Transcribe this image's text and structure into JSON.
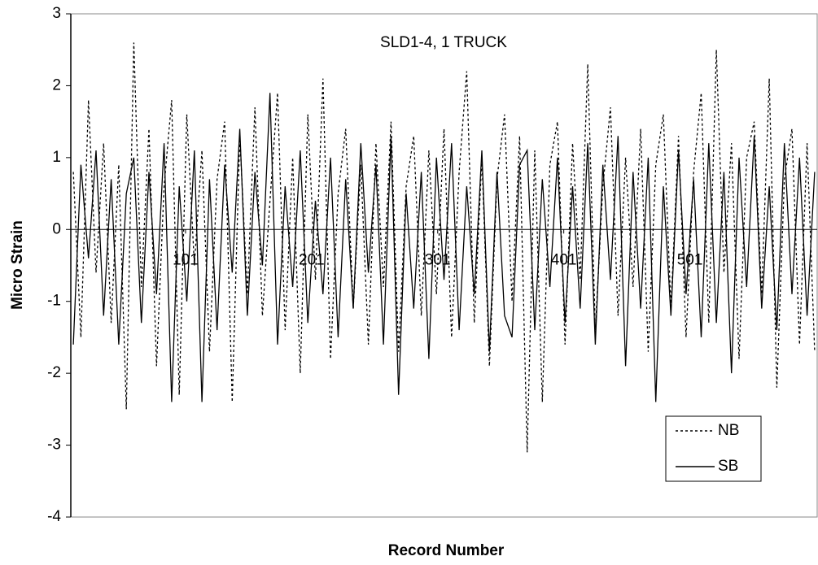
{
  "chart_data": {
    "type": "line",
    "title": "SLD1-4, 1 TRUCK",
    "xlabel": "Record Number",
    "ylabel": "Micro Strain",
    "x": [
      12,
      18,
      24,
      30,
      36,
      42,
      48,
      54,
      60,
      66,
      72,
      78,
      84,
      90,
      96,
      102,
      108,
      114,
      120,
      126,
      132,
      138,
      144,
      150,
      156,
      162,
      168,
      174,
      180,
      186,
      192,
      198,
      204,
      210,
      216,
      222,
      228,
      234,
      240,
      246,
      252,
      258,
      264,
      270,
      276,
      282,
      288,
      294,
      300,
      306,
      312,
      318,
      324,
      330,
      336,
      342,
      348,
      354,
      360,
      366,
      372,
      378,
      384,
      390,
      396,
      402,
      408,
      414,
      420,
      426,
      432,
      438,
      444,
      450,
      456,
      462,
      468,
      474,
      480,
      486,
      492,
      498,
      504,
      510,
      516,
      522,
      528,
      534,
      540,
      546,
      552,
      558,
      564,
      570,
      576,
      582,
      588,
      594,
      600
    ],
    "series": [
      {
        "name": "NB",
        "color": "#000000",
        "style": "dotted",
        "values": [
          0.8,
          -1.5,
          1.8,
          -0.6,
          1.2,
          -1.3,
          0.9,
          -2.5,
          2.6,
          -0.8,
          1.4,
          -1.9,
          0.6,
          1.8,
          -2.3,
          1.6,
          -0.5,
          1.1,
          -1.7,
          0.7,
          1.5,
          -2.4,
          1.3,
          -0.9,
          1.7,
          -1.2,
          0.4,
          1.9,
          -1.4,
          1.0,
          -2.0,
          1.6,
          -0.7,
          2.1,
          -1.8,
          0.5,
          1.4,
          -1.1,
          0.9,
          -1.6,
          1.2,
          -0.8,
          1.5,
          -1.7,
          0.6,
          1.3,
          -1.2,
          1.1,
          -0.9,
          1.4,
          -1.5,
          0.8,
          2.2,
          -1.3,
          1.0,
          -1.9,
          0.7,
          1.6,
          -1.0,
          1.3,
          -3.1,
          1.1,
          -2.4,
          0.9,
          1.5,
          -1.6,
          1.2,
          -0.7,
          2.3,
          -1.4,
          0.6,
          1.7,
          -1.2,
          1.0,
          -0.8,
          1.4,
          -1.7,
          0.9,
          1.6,
          -1.1,
          1.3,
          -1.5,
          0.8,
          1.9,
          -1.3,
          2.5,
          -0.6,
          1.2,
          -1.8,
          1.0,
          1.5,
          -0.9,
          2.1,
          -2.2,
          0.7,
          1.4,
          -1.6,
          1.2,
          -1.7
        ]
      },
      {
        "name": "SB",
        "color": "#000000",
        "style": "solid",
        "values": [
          -1.6,
          0.9,
          -0.4,
          1.1,
          -1.2,
          0.7,
          -1.6,
          0.5,
          1.0,
          -1.3,
          0.8,
          -0.9,
          1.2,
          -2.4,
          0.6,
          -1.0,
          1.1,
          -2.4,
          0.7,
          -1.4,
          0.9,
          -0.6,
          1.4,
          -1.2,
          0.8,
          -0.5,
          1.9,
          -1.6,
          0.6,
          -0.8,
          1.1,
          -1.3,
          0.4,
          -0.9,
          1.0,
          -1.5,
          0.7,
          -1.1,
          1.2,
          -0.6,
          0.9,
          -1.6,
          1.3,
          -2.3,
          0.5,
          -1.1,
          0.8,
          -1.8,
          1.0,
          -0.7,
          1.2,
          -1.4,
          0.6,
          -0.9,
          1.1,
          -1.7,
          0.8,
          -1.2,
          -1.5,
          0.9,
          1.1,
          -1.4,
          0.7,
          -0.8,
          1.0,
          -1.3,
          0.6,
          -1.1,
          1.2,
          -1.6,
          0.9,
          -0.7,
          1.3,
          -1.9,
          0.8,
          -1.1,
          1.0,
          -2.4,
          0.6,
          -1.2,
          1.1,
          -0.9,
          0.7,
          -1.5,
          1.2,
          -1.3,
          0.8,
          -2.0,
          1.0,
          -0.8,
          1.3,
          -1.1,
          0.6,
          -1.4,
          1.2,
          -0.9,
          1.0,
          -1.2,
          0.8
        ]
      }
    ],
    "xlim": [
      10,
      602
    ],
    "xticks": [
      101,
      201,
      301,
      401,
      501
    ],
    "ylim": [
      -4,
      3
    ],
    "yticks": [
      -4,
      -3,
      -2,
      -1,
      0,
      1,
      2,
      3
    ],
    "legend": "lower right"
  }
}
